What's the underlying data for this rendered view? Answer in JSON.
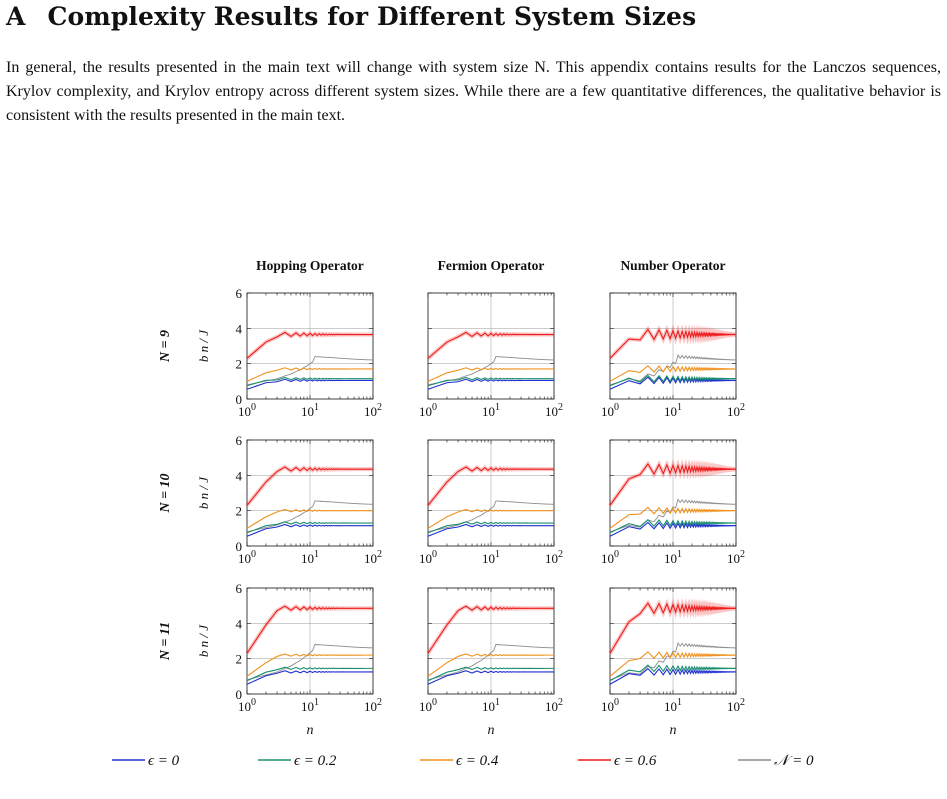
{
  "section": {
    "letter": "A",
    "title": "Complexity Results for Different System Sizes"
  },
  "paragraph": "In general, the results presented in the main text will change with system size N. This appendix contains results for the Lanczos sequences, Krylov complexity, and Krylov entropy across different system sizes. While there are a few quantitative differences, the qualitative behavior is consistent with the results presented in the main text.",
  "figure": {
    "columns": [
      "Hopping Operator",
      "Fermion Operator",
      "Number Operator"
    ],
    "rows": [
      "N = 9",
      "N = 10",
      "N = 11"
    ],
    "ylabel": "b_n / J",
    "xlabel": "n",
    "xticks": [
      "10^0",
      "10^1",
      "10^2"
    ],
    "yticks": [
      "0",
      "2",
      "4",
      "6"
    ],
    "legend": [
      {
        "label": "ϵ = 0",
        "color": "#1f2fd0"
      },
      {
        "label": "ϵ = 0.2",
        "color": "#1a8f6e"
      },
      {
        "label": "ϵ = 0.4",
        "color": "#f0901a"
      },
      {
        "label": "ϵ = 0.6",
        "color": "#ee1c1c"
      },
      {
        "label": "𝒩 = 0",
        "color": "#8c8c8c"
      }
    ]
  },
  "chart_data": {
    "type": "line",
    "xscale": "log",
    "xlim": [
      1,
      100
    ],
    "ylim": [
      0,
      6
    ],
    "grid": true,
    "columns": [
      "Hopping Operator",
      "Fermion Operator",
      "Number Operator"
    ],
    "rows": [
      "N = 9",
      "N = 10",
      "N = 11"
    ],
    "plateaus": {
      "N = 9": {
        "ϵ = 0": 1.05,
        "ϵ = 0.2": 1.15,
        "ϵ = 0.4": 1.7,
        "ϵ = 0.6": 3.65,
        "𝒩 = 0": 2.2
      },
      "N = 10": {
        "ϵ = 0": 1.15,
        "ϵ = 0.2": 1.3,
        "ϵ = 0.4": 2.0,
        "ϵ = 0.6": 4.35,
        "𝒩 = 0": 2.35
      },
      "N = 11": {
        "ϵ = 0": 1.25,
        "ϵ = 0.2": 1.45,
        "ϵ = 0.4": 2.2,
        "ϵ = 0.6": 4.85,
        "𝒩 = 0": 2.6
      }
    }
  }
}
